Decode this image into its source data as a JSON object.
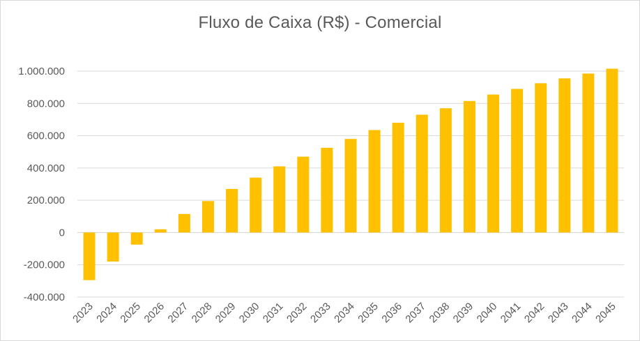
{
  "chart_data": {
    "type": "bar",
    "title": "Fluxo de Caixa (R$) - Comercial",
    "xlabel": "",
    "ylabel": "",
    "categories": [
      "2023",
      "2024",
      "2025",
      "2026",
      "2027",
      "2028",
      "2029",
      "2030",
      "2031",
      "2032",
      "2033",
      "2034",
      "2035",
      "2036",
      "2037",
      "2038",
      "2039",
      "2040",
      "2041",
      "2042",
      "2043",
      "2044",
      "2045"
    ],
    "values": [
      -295000,
      -180000,
      -75000,
      20000,
      115000,
      195000,
      270000,
      340000,
      410000,
      470000,
      525000,
      580000,
      635000,
      680000,
      730000,
      770000,
      815000,
      855000,
      890000,
      925000,
      955000,
      985000,
      1015000
    ],
    "ylim": [
      -400000,
      1000000
    ],
    "yticks": [
      -400000,
      -200000,
      0,
      200000,
      400000,
      600000,
      800000,
      1000000
    ],
    "ytick_labels": [
      "-400.000",
      "-200.000",
      "0",
      "200.000",
      "400.000",
      "600.000",
      "800.000",
      "1.000.000"
    ],
    "grid": true,
    "legend": "none",
    "bar_color": "#FFC000",
    "grid_color": "#D9D9D9",
    "text_color": "#595959"
  }
}
